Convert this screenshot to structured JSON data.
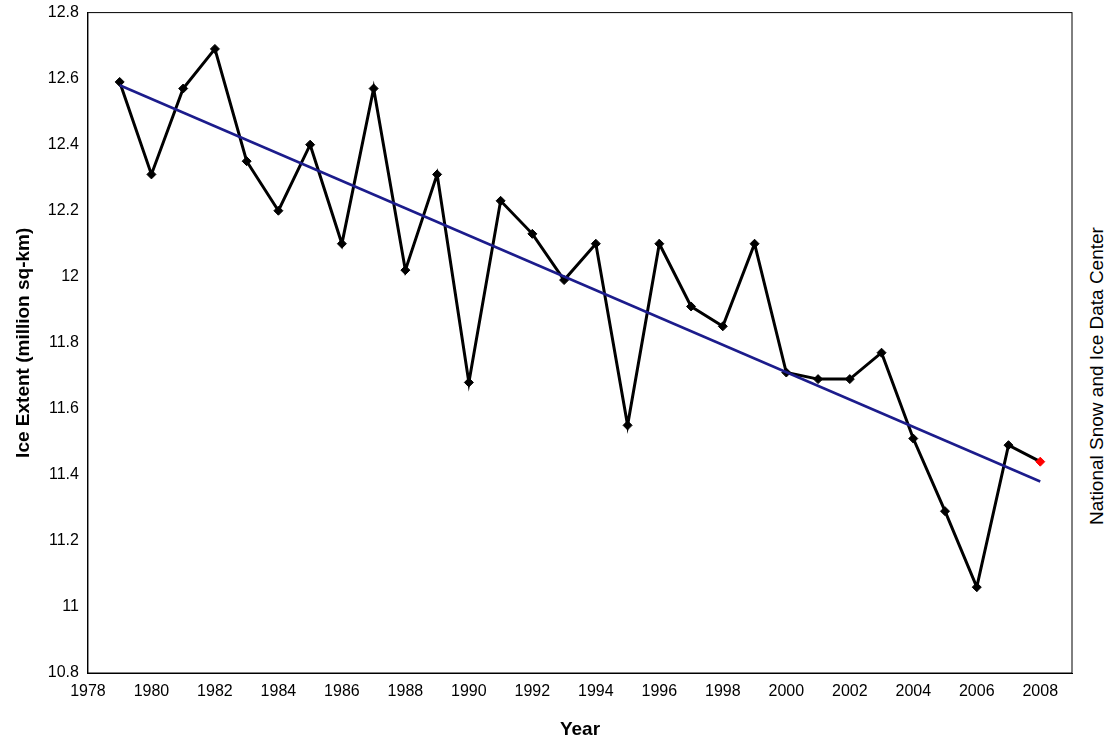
{
  "chart_data": {
    "type": "line",
    "x_label": "Year",
    "y_label": "Ice Extent (million sq-km)",
    "annotation": "National Snow and Ice Data Center",
    "x": [
      1979,
      1980,
      1981,
      1982,
      1983,
      1984,
      1985,
      1986,
      1987,
      1988,
      1989,
      1990,
      1991,
      1992,
      1993,
      1994,
      1995,
      1996,
      1997,
      1998,
      1999,
      2000,
      2001,
      2002,
      2003,
      2004,
      2005,
      2006,
      2007,
      2008
    ],
    "series": [
      {
        "color": "#000000",
        "colors": [
          "#000000",
          "#000000",
          "#000000",
          "#000000",
          "#000000",
          "#000000",
          "#000000",
          "#000000",
          "#000000",
          "#000000",
          "#000000",
          "#000000",
          "#000000",
          "#000000",
          "#000000",
          "#000000",
          "#000000",
          "#000000",
          "#000000",
          "#000000",
          "#000000",
          "#000000",
          "#000000",
          "#000000",
          "#000000",
          "#000000",
          "#000000",
          "#000000",
          "#000000",
          "#ff0000"
        ],
        "marker": "diamond",
        "line_style": "solid",
        "values": [
          12.59,
          12.31,
          12.57,
          12.69,
          12.35,
          12.2,
          12.4,
          12.1,
          12.57,
          12.02,
          12.31,
          11.68,
          12.23,
          12.13,
          11.99,
          12.1,
          11.55,
          12.1,
          11.91,
          11.85,
          12.1,
          11.71,
          11.69,
          11.69,
          11.77,
          11.51,
          11.29,
          11.06,
          11.49,
          11.44
        ]
      },
      {
        "color": "#1c1c8c",
        "marker": "none",
        "line_style": "solid",
        "x": [
          1979,
          2008
        ],
        "values": [
          12.58,
          11.38
        ]
      }
    ],
    "xlim": [
      1978,
      2009
    ],
    "xticks": [
      1978,
      1980,
      1982,
      1984,
      1986,
      1988,
      1990,
      1992,
      1994,
      1996,
      1998,
      2000,
      2002,
      2004,
      2006,
      2008
    ],
    "ylim": [
      10.8,
      12.8
    ],
    "yticks": [
      10.8,
      11,
      11.2,
      11.4,
      11.6,
      11.8,
      12,
      12.2,
      12.4,
      12.6,
      12.8
    ],
    "grid": false
  }
}
